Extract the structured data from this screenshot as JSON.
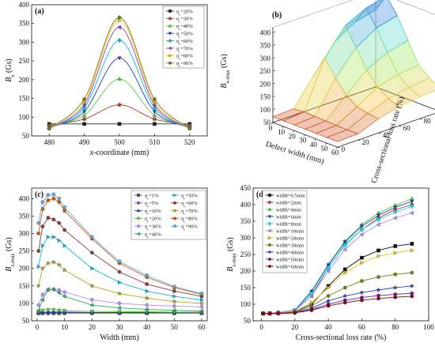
{
  "chart_data": [
    {
      "panel": "(a)",
      "type": "line",
      "xlabel": "x-coordinate (mm)",
      "ylabel": "B_x (Gs)",
      "xlim": [
        475,
        525
      ],
      "ylim": [
        50,
        400
      ],
      "xticks": [
        480,
        490,
        500,
        510,
        520
      ],
      "yticks": [
        50,
        100,
        150,
        200,
        250,
        300,
        350,
        400
      ],
      "legend_position": "top-right",
      "x": [
        480,
        490,
        500,
        510,
        520
      ],
      "series": [
        {
          "name": "η_c=20%",
          "color": "#222222",
          "marker": "square",
          "values": [
            82,
            82,
            82,
            82,
            82
          ]
        },
        {
          "name": "η_c=30%",
          "color": "#c0392b",
          "marker": "circle",
          "values": [
            78,
            95,
            133,
            95,
            78
          ]
        },
        {
          "name": "η_c=40%",
          "color": "#4cd137",
          "marker": "triangle-up",
          "values": [
            75,
            105,
            202,
            105,
            75
          ]
        },
        {
          "name": "η_c=50%",
          "color": "#1f3fc4",
          "marker": "triangle-down",
          "values": [
            72,
            115,
            258,
            115,
            72
          ]
        },
        {
          "name": "η_c=60%",
          "color": "#00bcd4",
          "marker": "diamond",
          "values": [
            70,
            125,
            305,
            125,
            70
          ]
        },
        {
          "name": "η_c=70%",
          "color": "#9b30d9",
          "marker": "triangle-left",
          "values": [
            70,
            133,
            340,
            133,
            70
          ]
        },
        {
          "name": "η_c=80%",
          "color": "#f1c40f",
          "marker": "triangle-right",
          "values": [
            70,
            140,
            358,
            140,
            70
          ]
        },
        {
          "name": "η_c=90%",
          "color": "#7a7a1a",
          "marker": "circle",
          "values": [
            70,
            148,
            366,
            148,
            70
          ]
        }
      ]
    },
    {
      "panel": "(b)",
      "type": "surface",
      "xlabel": "Defect width (mm)",
      "ylabel": "Cross-sectional loss rate (%)",
      "zlabel": "B_x-max (Gs)",
      "xticks": [
        0,
        10,
        20,
        30,
        40,
        50,
        60
      ],
      "yticks": [
        0,
        20,
        40,
        60,
        80,
        100
      ],
      "zticks": [
        50,
        100,
        150,
        200,
        250,
        300,
        350,
        400
      ],
      "zlim": [
        50,
        420
      ],
      "width": [
        0,
        10,
        20,
        30,
        40,
        50,
        60
      ],
      "loss_rate": [
        0,
        20,
        40,
        60,
        80,
        100
      ],
      "z": [
        [
          72,
          72,
          72,
          72,
          72,
          72,
          72
        ],
        [
          75,
          80,
          78,
          76,
          75,
          74,
          74
        ],
        [
          180,
          260,
          200,
          150,
          120,
          110,
          105
        ],
        [
          280,
          360,
          290,
          220,
          170,
          140,
          125
        ],
        [
          330,
          400,
          340,
          260,
          190,
          155,
          135
        ],
        [
          350,
          420,
          360,
          280,
          200,
          165,
          140
        ]
      ]
    },
    {
      "panel": "(c)",
      "type": "line",
      "xlabel": "Width (mm)",
      "ylabel": "B_x-max (Gs)",
      "xlim": [
        -2,
        62
      ],
      "ylim": [
        50,
        430
      ],
      "xticks": [
        0,
        10,
        20,
        30,
        40,
        50,
        60
      ],
      "yticks": [
        50,
        100,
        150,
        200,
        250,
        300,
        350,
        400
      ],
      "legend_position": "top-right",
      "x": [
        0.5,
        2,
        4,
        6,
        8,
        10,
        20,
        30,
        40,
        50,
        60
      ],
      "series": [
        {
          "name": "η_c=1%",
          "color": "#555555",
          "marker": "square",
          "values": [
            72,
            72,
            72,
            72,
            72,
            72,
            72,
            72,
            72,
            72,
            72
          ]
        },
        {
          "name": "η_c=5%",
          "color": "#8e44ad",
          "marker": "circle",
          "values": [
            72,
            72,
            73,
            73,
            73,
            73,
            73,
            73,
            73,
            73,
            73
          ]
        },
        {
          "name": "η_c=10%",
          "color": "#1f3fc4",
          "marker": "triangle-up",
          "values": [
            73,
            74,
            75,
            75,
            75,
            75,
            74,
            74,
            74,
            73,
            73
          ]
        },
        {
          "name": "η_c=20%",
          "color": "#4cd137",
          "marker": "triangle-down",
          "values": [
            76,
            80,
            82,
            82,
            80,
            79,
            77,
            76,
            76,
            75,
            75
          ]
        },
        {
          "name": "η_c=30%",
          "color": "#b388ff",
          "marker": "diamond",
          "values": [
            95,
            125,
            138,
            140,
            138,
            132,
            110,
            100,
            95,
            92,
            90
          ]
        },
        {
          "name": "η_c=40%",
          "color": "#27ae60",
          "marker": "triangle-left",
          "values": [
            80,
            110,
            140,
            140,
            130,
            120,
            95,
            87,
            83,
            80,
            78
          ]
        },
        {
          "name": "η_c=50%",
          "color": "#00bcd4",
          "marker": "triangle-right",
          "values": [
            205,
            265,
            290,
            290,
            280,
            265,
            200,
            160,
            135,
            120,
            110
          ]
        },
        {
          "name": "η_c=60%",
          "color": "#8b3a3a",
          "marker": "circle",
          "values": [
            250,
            320,
            345,
            340,
            330,
            310,
            245,
            190,
            155,
            135,
            120
          ]
        },
        {
          "name": "η_c=70%",
          "color": "#b5a210",
          "marker": "star",
          "values": [
            150,
            200,
            215,
            218,
            210,
            195,
            150,
            128,
            115,
            105,
            100
          ]
        },
        {
          "name": "η_c=80%",
          "color": "#d35400",
          "marker": "circle",
          "values": [
            300,
            370,
            395,
            400,
            390,
            365,
            285,
            215,
            175,
            145,
            125
          ]
        },
        {
          "name": "η_c=90%",
          "color": "#5dade2",
          "marker": "hexagon",
          "values": [
            330,
            390,
            410,
            412,
            400,
            375,
            290,
            220,
            180,
            148,
            128
          ]
        }
      ]
    },
    {
      "panel": "(d)",
      "type": "line",
      "xlabel": "Cross-sectional loss rate (%)",
      "ylabel": "B_x-max (Gs)",
      "xlim": [
        -5,
        100
      ],
      "ylim": [
        50,
        450
      ],
      "xticks": [
        0,
        20,
        40,
        60,
        80,
        100
      ],
      "yticks": [
        50,
        100,
        150,
        200,
        250,
        300,
        350,
        400,
        450
      ],
      "legend_position": "top-left",
      "x": [
        1,
        5,
        10,
        20,
        30,
        40,
        50,
        60,
        70,
        80,
        90
      ],
      "series": [
        {
          "name": "width=0.5mm",
          "color": "#111111",
          "marker": "square",
          "values": [
            72,
            72,
            73,
            78,
            100,
            155,
            205,
            240,
            262,
            275,
            282
          ]
        },
        {
          "name": "width=2mm",
          "color": "#c0392b",
          "marker": "circle",
          "values": [
            72,
            72,
            74,
            80,
            125,
            210,
            280,
            325,
            360,
            385,
            400
          ]
        },
        {
          "name": "width=4mm",
          "color": "#4cd137",
          "marker": "triangle-up",
          "values": [
            72,
            73,
            75,
            82,
            140,
            220,
            290,
            340,
            375,
            398,
            418
          ]
        },
        {
          "name": "width=6mm",
          "color": "#1f3fc4",
          "marker": "triangle-down",
          "values": [
            72,
            73,
            75,
            82,
            138,
            218,
            288,
            335,
            368,
            392,
            410
          ]
        },
        {
          "name": "width=8mm",
          "color": "#00e5ff",
          "marker": "diamond",
          "values": [
            72,
            73,
            75,
            81,
            132,
            210,
            278,
            325,
            355,
            378,
            395
          ]
        },
        {
          "name": "width=10mm",
          "color": "#b388ff",
          "marker": "triangle-left",
          "values": [
            72,
            73,
            75,
            80,
            125,
            200,
            265,
            310,
            340,
            360,
            375
          ]
        },
        {
          "name": "width=20mm",
          "color": "#f1c40f",
          "marker": "triangle-right",
          "values": [
            72,
            72,
            74,
            78,
            105,
            150,
            195,
            225,
            245,
            255,
            262
          ]
        },
        {
          "name": "width=30mm",
          "color": "#7a7a1a",
          "marker": "circle",
          "values": [
            72,
            72,
            73,
            76,
            95,
            125,
            150,
            170,
            182,
            190,
            195
          ]
        },
        {
          "name": "width=40mm",
          "color": "#1f3fc4",
          "marker": "star",
          "values": [
            72,
            72,
            73,
            75,
            88,
            110,
            125,
            135,
            143,
            150,
            155
          ]
        },
        {
          "name": "width=50mm",
          "color": "#6a1b9a",
          "marker": "circle",
          "values": [
            72,
            72,
            72,
            74,
            84,
            100,
            112,
            120,
            126,
            130,
            133
          ]
        },
        {
          "name": "width=60mm",
          "color": "#8b0000",
          "marker": "circle",
          "values": [
            72,
            72,
            72,
            74,
            82,
            95,
            105,
            112,
            117,
            121,
            124
          ]
        }
      ]
    }
  ]
}
